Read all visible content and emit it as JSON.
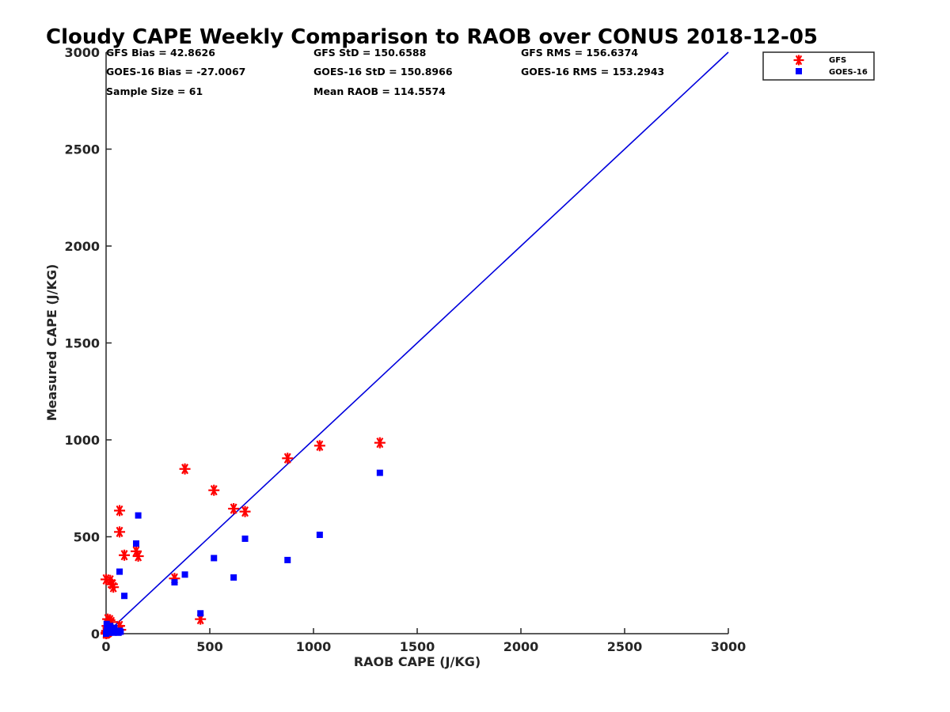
{
  "chart_data": {
    "type": "scatter",
    "title": "Cloudy CAPE Weekly Comparison to RAOB over CONUS 2018-12-05",
    "xlabel": "RAOB CAPE (J/KG)",
    "ylabel": "Measured CAPE (J/KG)",
    "xlim": [
      0,
      3000
    ],
    "ylim": [
      0,
      3000
    ],
    "xticks": [
      0,
      500,
      1000,
      1500,
      2000,
      2500,
      3000
    ],
    "yticks": [
      0,
      500,
      1000,
      1500,
      2000,
      2500,
      3000
    ],
    "grid": false,
    "legend_position": "top-right, outside plot",
    "reference_line": {
      "name": "1:1",
      "x": [
        0,
        3000
      ],
      "y": [
        0,
        3000
      ],
      "color": "#0000dd"
    },
    "stats": {
      "gfs_bias": "GFS Bias = 42.8626",
      "gfs_std": "GFS StD = 150.6588",
      "gfs_rms": "GFS RMS = 156.6374",
      "goes_bias": "GOES-16 Bias = -27.0067",
      "goes_std": "GOES-16 StD = 150.8966",
      "goes_rms": "GOES-16 RMS = 153.2943",
      "sample_size": "Sample Size = 61",
      "mean_raob": "Mean RAOB = 114.5574"
    },
    "series": [
      {
        "name": "GFS",
        "marker": "asterisk",
        "color": "#ff0000",
        "points": [
          [
            0,
            0
          ],
          [
            3,
            15
          ],
          [
            5,
            10
          ],
          [
            8,
            5
          ],
          [
            10,
            30
          ],
          [
            2,
            0
          ],
          [
            12,
            8
          ],
          [
            0,
            5
          ],
          [
            15,
            20
          ],
          [
            5,
            40
          ],
          [
            8,
            75
          ],
          [
            18,
            70
          ],
          [
            25,
            60
          ],
          [
            0,
            280
          ],
          [
            20,
            275
          ],
          [
            30,
            255
          ],
          [
            35,
            240
          ],
          [
            65,
            40
          ],
          [
            70,
            20
          ],
          [
            65,
            635
          ],
          [
            65,
            525
          ],
          [
            88,
            405
          ],
          [
            145,
            425
          ],
          [
            155,
            400
          ],
          [
            330,
            285
          ],
          [
            380,
            850
          ],
          [
            455,
            75
          ],
          [
            520,
            740
          ],
          [
            615,
            645
          ],
          [
            670,
            630
          ],
          [
            875,
            905
          ],
          [
            1030,
            970
          ],
          [
            1320,
            985
          ]
        ]
      },
      {
        "name": "GOES-16",
        "marker": "square",
        "color": "#0000ff",
        "points": [
          [
            0,
            0
          ],
          [
            2,
            10
          ],
          [
            5,
            25
          ],
          [
            8,
            35
          ],
          [
            12,
            15
          ],
          [
            15,
            5
          ],
          [
            20,
            40
          ],
          [
            25,
            10
          ],
          [
            30,
            20
          ],
          [
            35,
            5
          ],
          [
            40,
            30
          ],
          [
            60,
            5
          ],
          [
            65,
            15
          ],
          [
            70,
            10
          ],
          [
            3,
            50
          ],
          [
            10,
            20
          ],
          [
            65,
            320
          ],
          [
            88,
            195
          ],
          [
            145,
            465
          ],
          [
            155,
            610
          ],
          [
            330,
            265
          ],
          [
            380,
            305
          ],
          [
            455,
            105
          ],
          [
            520,
            390
          ],
          [
            615,
            290
          ],
          [
            670,
            490
          ],
          [
            875,
            380
          ],
          [
            1030,
            510
          ],
          [
            1320,
            830
          ]
        ]
      }
    ]
  }
}
